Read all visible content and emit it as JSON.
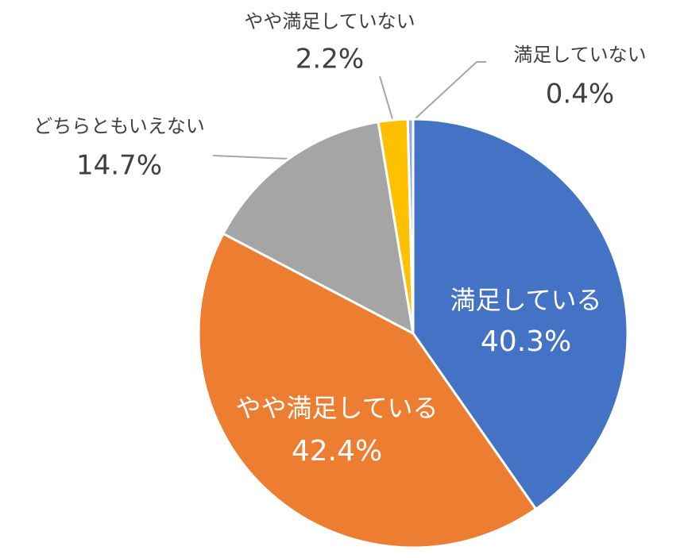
{
  "chart_data": {
    "type": "pie",
    "categories": [
      "満足している",
      "やや満足している",
      "どちらともいえない",
      "やや満足していない",
      "満足していない"
    ],
    "values": [
      40.3,
      42.4,
      14.7,
      2.2,
      0.4
    ],
    "value_labels": [
      "40.3%",
      "42.4%",
      "14.7%",
      "2.2%",
      "0.4%"
    ],
    "colors": [
      "#4472c4",
      "#ed7d31",
      "#a5a5a5",
      "#ffc000",
      "#8faadc"
    ]
  }
}
